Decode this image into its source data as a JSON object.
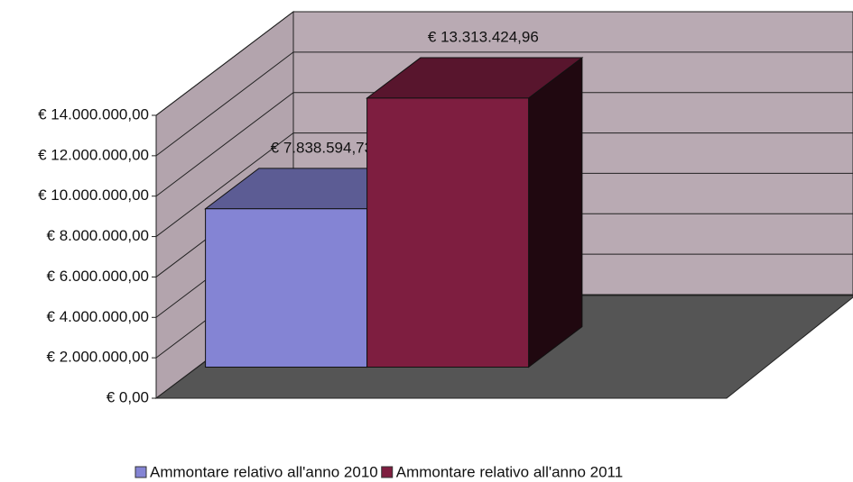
{
  "chart_data": {
    "type": "bar3d",
    "categories": [
      null
    ],
    "series": [
      {
        "name": "Ammontare relativo all'anno 2010",
        "color": "#8484d4",
        "values": [
          7838594.73
        ],
        "value_labels": [
          "€ 7.838.594,73"
        ]
      },
      {
        "name": "Ammontare relativo all'anno 2011",
        "color": "#7e1e40",
        "values": [
          13313424.96
        ],
        "value_labels": [
          "€ 13.313.424,96"
        ]
      }
    ],
    "ylim": [
      0,
      14000000
    ],
    "yticks": [
      {
        "value": 0,
        "label": "€ 0,00"
      },
      {
        "value": 2000000,
        "label": "€ 2.000.000,00"
      },
      {
        "value": 4000000,
        "label": "€ 4.000.000,00"
      },
      {
        "value": 6000000,
        "label": "€ 6.000.000,00"
      },
      {
        "value": 8000000,
        "label": "€ 8.000.000,00"
      },
      {
        "value": 10000000,
        "label": "€ 10.000.000,00"
      },
      {
        "value": 12000000,
        "label": "€ 12.000.000,00"
      },
      {
        "value": 14000000,
        "label": "€ 14.000.000,00"
      }
    ],
    "grid": true,
    "legend": "bottom"
  }
}
